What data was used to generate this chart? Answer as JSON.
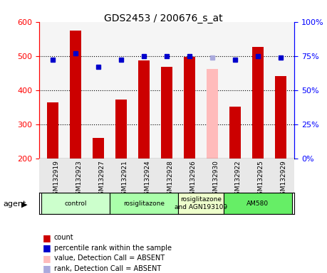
{
  "title": "GDS2453 / 200676_s_at",
  "samples": [
    "GSM132919",
    "GSM132923",
    "GSM132927",
    "GSM132921",
    "GSM132924",
    "GSM132928",
    "GSM132926",
    "GSM132930",
    "GSM132922",
    "GSM132925",
    "GSM132929"
  ],
  "bar_values": [
    365,
    575,
    260,
    372,
    487,
    468,
    497,
    461,
    352,
    527,
    442
  ],
  "bar_colors": [
    "#cc0000",
    "#cc0000",
    "#cc0000",
    "#cc0000",
    "#cc0000",
    "#cc0000",
    "#cc0000",
    "#ffbbbb",
    "#cc0000",
    "#cc0000",
    "#cc0000"
  ],
  "dot_values": [
    72,
    77,
    67,
    72,
    75,
    75,
    75,
    74,
    72,
    75,
    74
  ],
  "dot_colors": [
    "#0000cc",
    "#0000cc",
    "#0000cc",
    "#0000cc",
    "#0000cc",
    "#0000cc",
    "#0000cc",
    "#aaaadd",
    "#0000cc",
    "#0000cc",
    "#0000cc"
  ],
  "ylim_left": [
    200,
    600
  ],
  "ylim_right": [
    0,
    100
  ],
  "yticks_left": [
    200,
    300,
    400,
    500,
    600
  ],
  "yticks_right": [
    0,
    25,
    50,
    75,
    100
  ],
  "groups": [
    {
      "label": "control",
      "start": 0,
      "end": 3,
      "color": "#ccffcc"
    },
    {
      "label": "rosiglitazone",
      "start": 3,
      "end": 6,
      "color": "#aaffaa"
    },
    {
      "label": "rosiglitazone\nand AGN193109",
      "start": 6,
      "end": 8,
      "color": "#eeffcc"
    },
    {
      "label": "AM580",
      "start": 8,
      "end": 11,
      "color": "#66ee66"
    }
  ],
  "legend_items": [
    {
      "color": "#cc0000",
      "marker": "s",
      "label": "count"
    },
    {
      "color": "#0000cc",
      "marker": "s",
      "label": "percentile rank within the sample"
    },
    {
      "color": "#ffbbbb",
      "marker": "s",
      "label": "value, Detection Call = ABSENT"
    },
    {
      "color": "#aaaadd",
      "marker": "s",
      "label": "rank, Detection Call = ABSENT"
    }
  ],
  "agent_label": "agent",
  "bg_color": "#e8e8e8"
}
